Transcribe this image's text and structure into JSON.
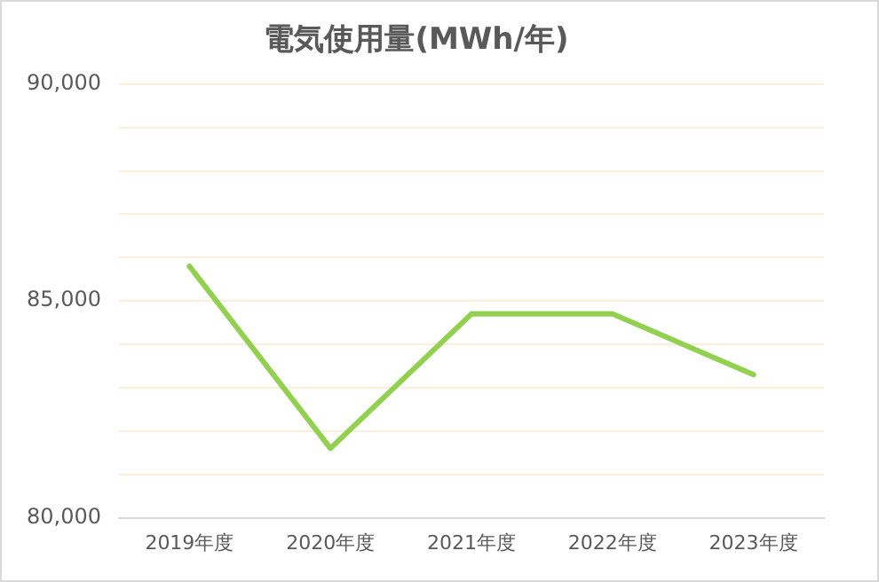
{
  "chart_data": {
    "type": "line",
    "title": "電気使用量(MWh/年)",
    "categories": [
      "2019年度",
      "2020年度",
      "2021年度",
      "2022年度",
      "2023年度"
    ],
    "series": [
      {
        "color": "#92d050",
        "values": [
          85800,
          81600,
          84700,
          84700,
          83300
        ]
      }
    ],
    "ylim": [
      80000,
      90000
    ],
    "yticks": [
      {
        "value": 80000,
        "label": "80,000"
      },
      {
        "value": 81000,
        "label": null
      },
      {
        "value": 82000,
        "label": null
      },
      {
        "value": 83000,
        "label": null
      },
      {
        "value": 84000,
        "label": null
      },
      {
        "value": 85000,
        "label": "85,000"
      },
      {
        "value": 86000,
        "label": null
      },
      {
        "value": 87000,
        "label": null
      },
      {
        "value": 88000,
        "label": null
      },
      {
        "value": 89000,
        "label": null
      },
      {
        "value": 90000,
        "label": "90,000"
      }
    ],
    "grid": "y",
    "legend": false,
    "marker": "none",
    "line_style": "solid"
  }
}
